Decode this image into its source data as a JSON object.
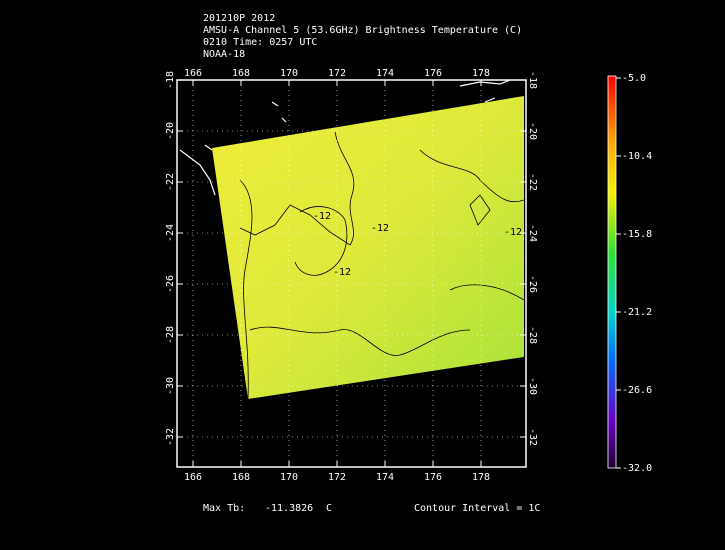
{
  "header": {
    "lines": [
      "201210P 2012",
      "AMSU-A Channel 5 (53.6GHz) Brightness Temperature (C)",
      "0210 Time: 0257 UTC",
      "NOAA-18"
    ]
  },
  "map": {
    "longitudes": [
      166,
      168,
      170,
      172,
      174,
      176,
      178
    ],
    "latitudes": [
      -18,
      -20,
      -22,
      -24,
      -26,
      -28,
      -30,
      -32
    ],
    "contour_labels": [
      "-12",
      "-12",
      "-12",
      "-12"
    ]
  },
  "colorbar": {
    "labels": [
      "-5.0",
      "-10.4",
      "-15.8",
      "-21.2",
      "-26.6",
      "-32.0"
    ]
  },
  "footer": {
    "max_label": "Max Tb:",
    "max_value": "-11.3826",
    "max_unit": "C",
    "contour": "Contour Interval = 1C"
  }
}
